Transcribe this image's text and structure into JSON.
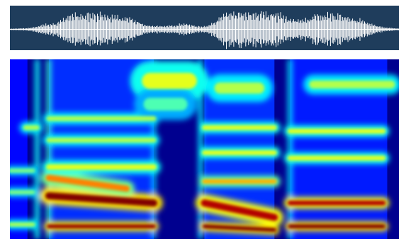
{
  "chart_data": [
    {
      "type": "waveform",
      "colors": {
        "background": "#1f3d5c",
        "signal": "#ffffff"
      },
      "envelope": [
        0.04,
        0.05,
        0.06,
        0.1,
        0.22,
        0.3,
        0.34,
        0.55,
        0.78,
        0.86,
        0.82,
        0.8,
        0.84,
        0.78,
        0.7,
        0.72,
        0.6,
        0.38,
        0.24,
        0.2,
        0.18,
        0.2,
        0.26,
        0.3,
        0.22,
        0.16,
        0.2,
        0.44,
        0.88,
        0.94,
        0.92,
        0.9,
        0.86,
        0.88,
        0.9,
        0.84,
        0.7,
        0.56,
        0.5,
        0.6,
        0.78,
        0.82,
        0.8,
        0.76,
        0.72,
        0.64,
        0.5,
        0.36,
        0.22,
        0.12,
        0.08,
        0.05
      ]
    },
    {
      "type": "heatmap",
      "colormap": "jet",
      "colors": {
        "low": "#00008f",
        "high": "#ff1a00"
      },
      "segments": [
        {
          "t0": 0.0,
          "t1": 0.045
        },
        {
          "t0": 0.045,
          "t1": 0.1
        },
        {
          "t0": 0.1,
          "t1": 0.37
        },
        {
          "t0": 0.37,
          "t1": 0.5
        },
        {
          "t0": 0.5,
          "t1": 0.62
        },
        {
          "t0": 0.62,
          "t1": 0.68
        },
        {
          "t0": 0.68,
          "t1": 0.72
        },
        {
          "t0": 0.72,
          "t1": 0.97
        },
        {
          "t0": 0.97,
          "t1": 1.0
        }
      ],
      "bands": [
        {
          "t0": 0.0,
          "t1": 0.06,
          "f0": 0.92,
          "f1": 0.92,
          "level": 0.55,
          "width": 0.025
        },
        {
          "t0": 0.0,
          "t1": 0.06,
          "f0": 0.74,
          "f1": 0.74,
          "level": 0.5,
          "width": 0.025
        },
        {
          "t0": 0.0,
          "t1": 0.06,
          "f0": 0.62,
          "f1": 0.62,
          "level": 0.5,
          "width": 0.025
        },
        {
          "t0": 0.04,
          "t1": 0.07,
          "f0": 0.38,
          "f1": 0.38,
          "level": 0.55,
          "width": 0.03
        },
        {
          "t0": 0.1,
          "t1": 0.37,
          "f0": 0.93,
          "f1": 0.93,
          "level": 0.98,
          "width": 0.025
        },
        {
          "t0": 0.1,
          "t1": 0.37,
          "f0": 0.76,
          "f1": 0.8,
          "level": 1.0,
          "width": 0.045
        },
        {
          "t0": 0.1,
          "t1": 0.3,
          "f0": 0.66,
          "f1": 0.72,
          "level": 0.75,
          "width": 0.04
        },
        {
          "t0": 0.1,
          "t1": 0.37,
          "f0": 0.6,
          "f1": 0.6,
          "level": 0.6,
          "width": 0.035
        },
        {
          "t0": 0.1,
          "t1": 0.37,
          "f0": 0.45,
          "f1": 0.45,
          "level": 0.55,
          "width": 0.03
        },
        {
          "t0": 0.1,
          "t1": 0.37,
          "f0": 0.33,
          "f1": 0.33,
          "level": 0.55,
          "width": 0.03
        },
        {
          "t0": 0.36,
          "t1": 0.46,
          "f0": 0.12,
          "f1": 0.12,
          "level": 0.6,
          "width": 0.1
        },
        {
          "t0": 0.36,
          "t1": 0.44,
          "f0": 0.25,
          "f1": 0.25,
          "level": 0.45,
          "width": 0.08
        },
        {
          "t0": 0.5,
          "t1": 0.68,
          "f0": 0.93,
          "f1": 0.95,
          "level": 1.0,
          "width": 0.025
        },
        {
          "t0": 0.5,
          "t1": 0.68,
          "f0": 0.8,
          "f1": 0.88,
          "level": 0.95,
          "width": 0.045
        },
        {
          "t0": 0.5,
          "t1": 0.68,
          "f0": 0.68,
          "f1": 0.68,
          "level": 0.7,
          "width": 0.03
        },
        {
          "t0": 0.5,
          "t1": 0.68,
          "f0": 0.52,
          "f1": 0.52,
          "level": 0.6,
          "width": 0.03
        },
        {
          "t0": 0.5,
          "t1": 0.68,
          "f0": 0.38,
          "f1": 0.38,
          "level": 0.6,
          "width": 0.03
        },
        {
          "t0": 0.54,
          "t1": 0.64,
          "f0": 0.16,
          "f1": 0.16,
          "level": 0.55,
          "width": 0.07
        },
        {
          "t0": 0.72,
          "t1": 0.96,
          "f0": 0.93,
          "f1": 0.93,
          "level": 1.0,
          "width": 0.025
        },
        {
          "t0": 0.72,
          "t1": 0.96,
          "f0": 0.8,
          "f1": 0.8,
          "level": 0.95,
          "width": 0.03
        },
        {
          "t0": 0.72,
          "t1": 0.96,
          "f0": 0.55,
          "f1": 0.55,
          "level": 0.6,
          "width": 0.03
        },
        {
          "t0": 0.72,
          "t1": 0.96,
          "f0": 0.4,
          "f1": 0.4,
          "level": 0.6,
          "width": 0.03
        },
        {
          "t0": 0.78,
          "t1": 0.98,
          "f0": 0.14,
          "f1": 0.14,
          "level": 0.55,
          "width": 0.05
        }
      ],
      "vertical_lines": [
        {
          "t": 0.07,
          "level": 0.55
        },
        {
          "t": 0.1,
          "level": 0.6
        },
        {
          "t": 0.37,
          "level": 0.45
        },
        {
          "t": 0.49,
          "level": 0.5
        },
        {
          "t": 0.72,
          "level": 0.5
        }
      ]
    }
  ]
}
